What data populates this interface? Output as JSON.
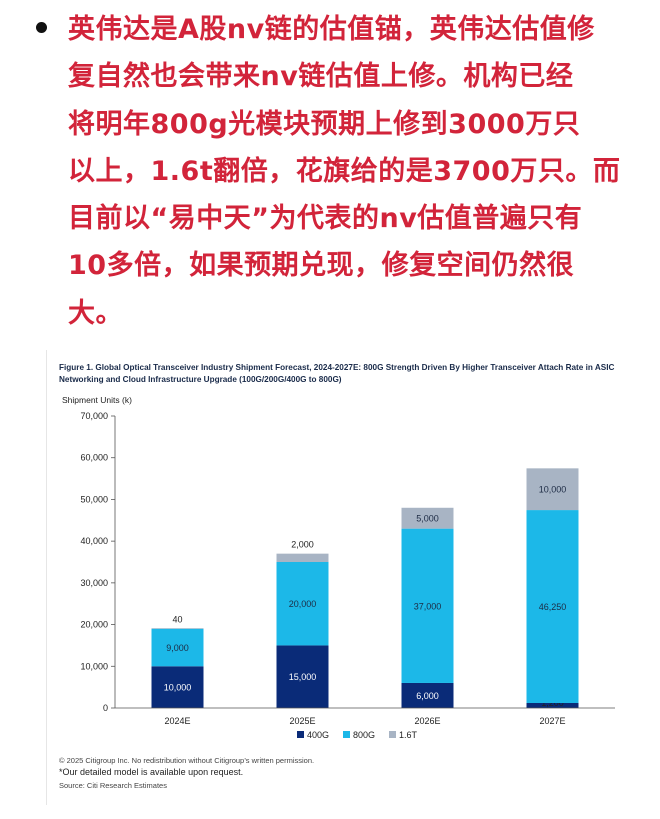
{
  "post": {
    "lines": [
      "英伟达是A股nv链的估值锚，英伟达估值修",
      "复自然也会带来nv链估值上修。机构已经",
      "将明年800g光模块预期上修到3000万只",
      "以上，1.6t翻倍，花旗给的是3700万只。而",
      "目前以“易中天”为代表的nv估值普遍只有",
      "10多倍，如果预期兑现，修复空间仍然很",
      "大。"
    ]
  },
  "figure": {
    "title": "Figure 1. Global Optical Transceiver Industry Shipment Forecast, 2024-2027E: 800G Strength Driven By Higher Transceiver Attach Rate in ASIC Networking and Cloud Infrastructure Upgrade (100G/200G/400G to 800G)",
    "footnote_copyright": "© 2025 Citigroup Inc. No redistribution without Citigroup’s written permission.",
    "footnote_model": "*Our detailed model is available upon request.",
    "footnote_source": "Source: Citi Research Estimates"
  },
  "chart_data": {
    "type": "bar",
    "stacked": true,
    "title": "",
    "ylabel": "Shipment Units (k)",
    "xlabel": "",
    "ylim": [
      0,
      70000
    ],
    "yticks": [
      0,
      10000,
      20000,
      30000,
      40000,
      50000,
      60000,
      70000
    ],
    "ytick_labels": [
      "0",
      "10,000",
      "20,000",
      "30,000",
      "40,000",
      "50,000",
      "60,000",
      "70,000"
    ],
    "categories": [
      "2024E",
      "2025E",
      "2026E",
      "2027E"
    ],
    "series": [
      {
        "name": "400G",
        "color": "#0a2b78",
        "values": [
          10000,
          15000,
          6000,
          1200
        ],
        "labels": [
          "10,000",
          "15,000",
          "6,000",
          "1,200"
        ]
      },
      {
        "name": "800G",
        "color": "#1cb8e8",
        "values": [
          9000,
          20000,
          37000,
          46250
        ],
        "labels": [
          "9,000",
          "20,000",
          "37,000",
          "46,250"
        ]
      },
      {
        "name": "1.6T",
        "color": "#a8b4c4",
        "values": [
          40,
          2000,
          5000,
          10000
        ],
        "labels": [
          "40",
          "2,000",
          "5,000",
          "10,000"
        ]
      }
    ],
    "grid": false,
    "legend_position": "bottom-center"
  }
}
